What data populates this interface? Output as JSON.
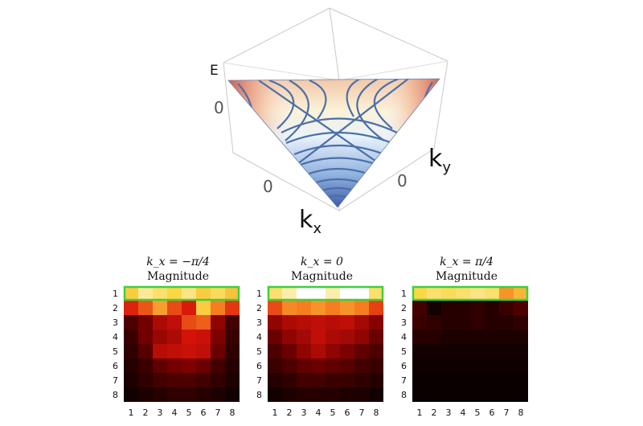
{
  "surface_plot": {
    "z_label": "E",
    "z_tick": "0",
    "x_label": "k",
    "x_label_sub": "x",
    "x_tick": "0",
    "y_label": "k",
    "y_label_sub": "y",
    "y_tick": "0"
  },
  "chart_data": [
    {
      "type": "heatmap",
      "title": "k_x = −π/4",
      "subtitle": "Magnitude",
      "xticks": [
        "1",
        "2",
        "3",
        "4",
        "5",
        "6",
        "7",
        "8"
      ],
      "yticks": [
        "1",
        "2",
        "3",
        "4",
        "5",
        "6",
        "7",
        "8"
      ],
      "highlight_row": 1,
      "values": [
        [
          0.8,
          0.9,
          0.86,
          0.82,
          0.88,
          0.8,
          0.84,
          0.78
        ],
        [
          0.48,
          0.58,
          0.72,
          0.56,
          0.46,
          0.8,
          0.66,
          0.52
        ],
        [
          0.16,
          0.24,
          0.36,
          0.4,
          0.56,
          0.6,
          0.3,
          0.14
        ],
        [
          0.12,
          0.24,
          0.32,
          0.36,
          0.44,
          0.42,
          0.26,
          0.12
        ],
        [
          0.1,
          0.18,
          0.38,
          0.4,
          0.42,
          0.4,
          0.22,
          0.1
        ],
        [
          0.08,
          0.12,
          0.2,
          0.24,
          0.26,
          0.22,
          0.14,
          0.08
        ],
        [
          0.06,
          0.1,
          0.14,
          0.16,
          0.16,
          0.14,
          0.1,
          0.06
        ],
        [
          0.04,
          0.06,
          0.08,
          0.1,
          0.1,
          0.08,
          0.06,
          0.04
        ]
      ]
    },
    {
      "type": "heatmap",
      "title": "k_x = 0",
      "subtitle": "Magnitude",
      "xticks": [
        "1",
        "2",
        "3",
        "4",
        "5",
        "6",
        "7",
        "8"
      ],
      "yticks": [
        "1",
        "2",
        "3",
        "4",
        "5",
        "6",
        "7",
        "8"
      ],
      "highlight_row": 1,
      "values": [
        [
          0.86,
          0.92,
          1.0,
          1.0,
          0.92,
          1.0,
          1.0,
          0.86
        ],
        [
          0.56,
          0.68,
          0.66,
          0.7,
          0.66,
          0.7,
          0.66,
          0.54
        ],
        [
          0.3,
          0.36,
          0.38,
          0.4,
          0.38,
          0.4,
          0.34,
          0.28
        ],
        [
          0.22,
          0.3,
          0.34,
          0.4,
          0.36,
          0.34,
          0.3,
          0.22
        ],
        [
          0.16,
          0.22,
          0.3,
          0.36,
          0.3,
          0.26,
          0.2,
          0.16
        ],
        [
          0.12,
          0.16,
          0.2,
          0.22,
          0.2,
          0.18,
          0.14,
          0.12
        ],
        [
          0.08,
          0.1,
          0.14,
          0.14,
          0.12,
          0.12,
          0.1,
          0.08
        ],
        [
          0.04,
          0.06,
          0.08,
          0.08,
          0.08,
          0.06,
          0.06,
          0.04
        ]
      ]
    },
    {
      "type": "heatmap",
      "title": "k_x = π/4",
      "subtitle": "Magnitude",
      "xticks": [
        "1",
        "2",
        "3",
        "4",
        "5",
        "6",
        "7",
        "8"
      ],
      "yticks": [
        "1",
        "2",
        "3",
        "4",
        "5",
        "6",
        "7",
        "8"
      ],
      "highlight_row": 1,
      "values": [
        [
          0.82,
          0.86,
          0.84,
          0.86,
          0.88,
          0.86,
          0.7,
          0.76
        ],
        [
          0.14,
          0.04,
          0.08,
          0.08,
          0.1,
          0.08,
          0.12,
          0.16
        ],
        [
          0.12,
          0.1,
          0.08,
          0.08,
          0.1,
          0.08,
          0.08,
          0.1
        ],
        [
          0.08,
          0.08,
          0.06,
          0.06,
          0.06,
          0.06,
          0.06,
          0.06
        ],
        [
          0.04,
          0.04,
          0.04,
          0.04,
          0.04,
          0.04,
          0.04,
          0.04
        ],
        [
          0.03,
          0.03,
          0.03,
          0.03,
          0.03,
          0.03,
          0.03,
          0.03
        ],
        [
          0.02,
          0.02,
          0.02,
          0.02,
          0.02,
          0.02,
          0.02,
          0.02
        ],
        [
          0.02,
          0.02,
          0.02,
          0.02,
          0.02,
          0.02,
          0.02,
          0.02
        ]
      ]
    }
  ]
}
